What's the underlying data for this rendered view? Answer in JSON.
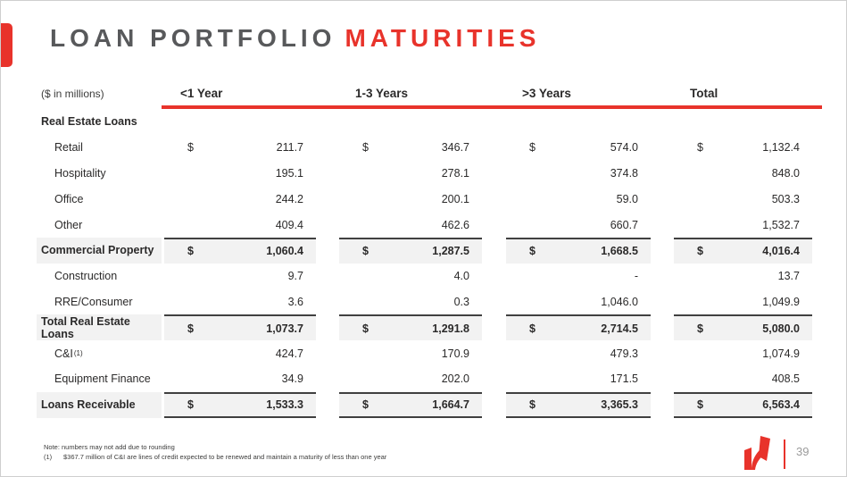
{
  "slide": {
    "title_primary": "LOAN PORTFOLIO",
    "title_accent": "MATURITIES",
    "page_number": "39",
    "accent_color": "#e8332b",
    "title_color": "#58595b",
    "subtotal_row_bg": "#f2f2f2"
  },
  "footnotes": {
    "note": "Note: numbers may not add due to rounding",
    "fn1_marker": "(1)",
    "fn1_text": "$367.7 million of C&I are lines of credit expected to be renewed and maintain a maturity of less than one year"
  },
  "table": {
    "unit_label": "($ in millions)",
    "columns": [
      "<1 Year",
      "1-3 Years",
      ">3 Years",
      "Total"
    ],
    "rows": [
      {
        "style": "section",
        "label": "Real Estate Loans",
        "cells": null
      },
      {
        "style": "item",
        "label": "Retail",
        "cells": [
          {
            "d": "$",
            "v": "211.7"
          },
          {
            "d": "$",
            "v": "346.7"
          },
          {
            "d": "$",
            "v": "574.0"
          },
          {
            "d": "$",
            "v": "1,132.4"
          }
        ]
      },
      {
        "style": "item",
        "label": "Hospitality",
        "cells": [
          {
            "v": "195.1"
          },
          {
            "v": "278.1"
          },
          {
            "v": "374.8"
          },
          {
            "v": "848.0"
          }
        ]
      },
      {
        "style": "item",
        "label": "Office",
        "cells": [
          {
            "v": "244.2"
          },
          {
            "v": "200.1"
          },
          {
            "v": "59.0"
          },
          {
            "v": "503.3"
          }
        ]
      },
      {
        "style": "item",
        "label": "Other",
        "cells": [
          {
            "v": "409.4"
          },
          {
            "v": "462.6"
          },
          {
            "v": "660.7"
          },
          {
            "v": "1,532.7"
          }
        ]
      },
      {
        "style": "total",
        "label": "Commercial Property",
        "cells": [
          {
            "d": "$",
            "v": "1,060.4"
          },
          {
            "d": "$",
            "v": "1,287.5"
          },
          {
            "d": "$",
            "v": "1,668.5"
          },
          {
            "d": "$",
            "v": "4,016.4"
          }
        ]
      },
      {
        "style": "item",
        "label": "Construction",
        "cells": [
          {
            "v": "9.7"
          },
          {
            "v": "4.0"
          },
          {
            "v": "-"
          },
          {
            "v": "13.7"
          }
        ]
      },
      {
        "style": "item",
        "label": "RRE/Consumer",
        "cells": [
          {
            "v": "3.6"
          },
          {
            "v": "0.3"
          },
          {
            "v": "1,046.0"
          },
          {
            "v": "1,049.9"
          }
        ]
      },
      {
        "style": "total",
        "label": "Total Real Estate Loans",
        "cells": [
          {
            "d": "$",
            "v": "1,073.7"
          },
          {
            "d": "$",
            "v": "1,291.8"
          },
          {
            "d": "$",
            "v": "2,714.5"
          },
          {
            "d": "$",
            "v": "5,080.0"
          }
        ]
      },
      {
        "style": "item",
        "label": "C&I",
        "sup": "(1)",
        "cells": [
          {
            "v": "424.7"
          },
          {
            "v": "170.9"
          },
          {
            "v": "479.3"
          },
          {
            "v": "1,074.9"
          }
        ]
      },
      {
        "style": "item",
        "label": "Equipment Finance",
        "cells": [
          {
            "v": "34.9"
          },
          {
            "v": "202.0"
          },
          {
            "v": "171.5"
          },
          {
            "v": "408.5"
          }
        ]
      },
      {
        "style": "total grand",
        "label": "Loans Receivable",
        "cells": [
          {
            "d": "$",
            "v": "1,533.3"
          },
          {
            "d": "$",
            "v": "1,664.7"
          },
          {
            "d": "$",
            "v": "3,365.3"
          },
          {
            "d": "$",
            "v": "6,563.4"
          }
        ]
      }
    ]
  }
}
